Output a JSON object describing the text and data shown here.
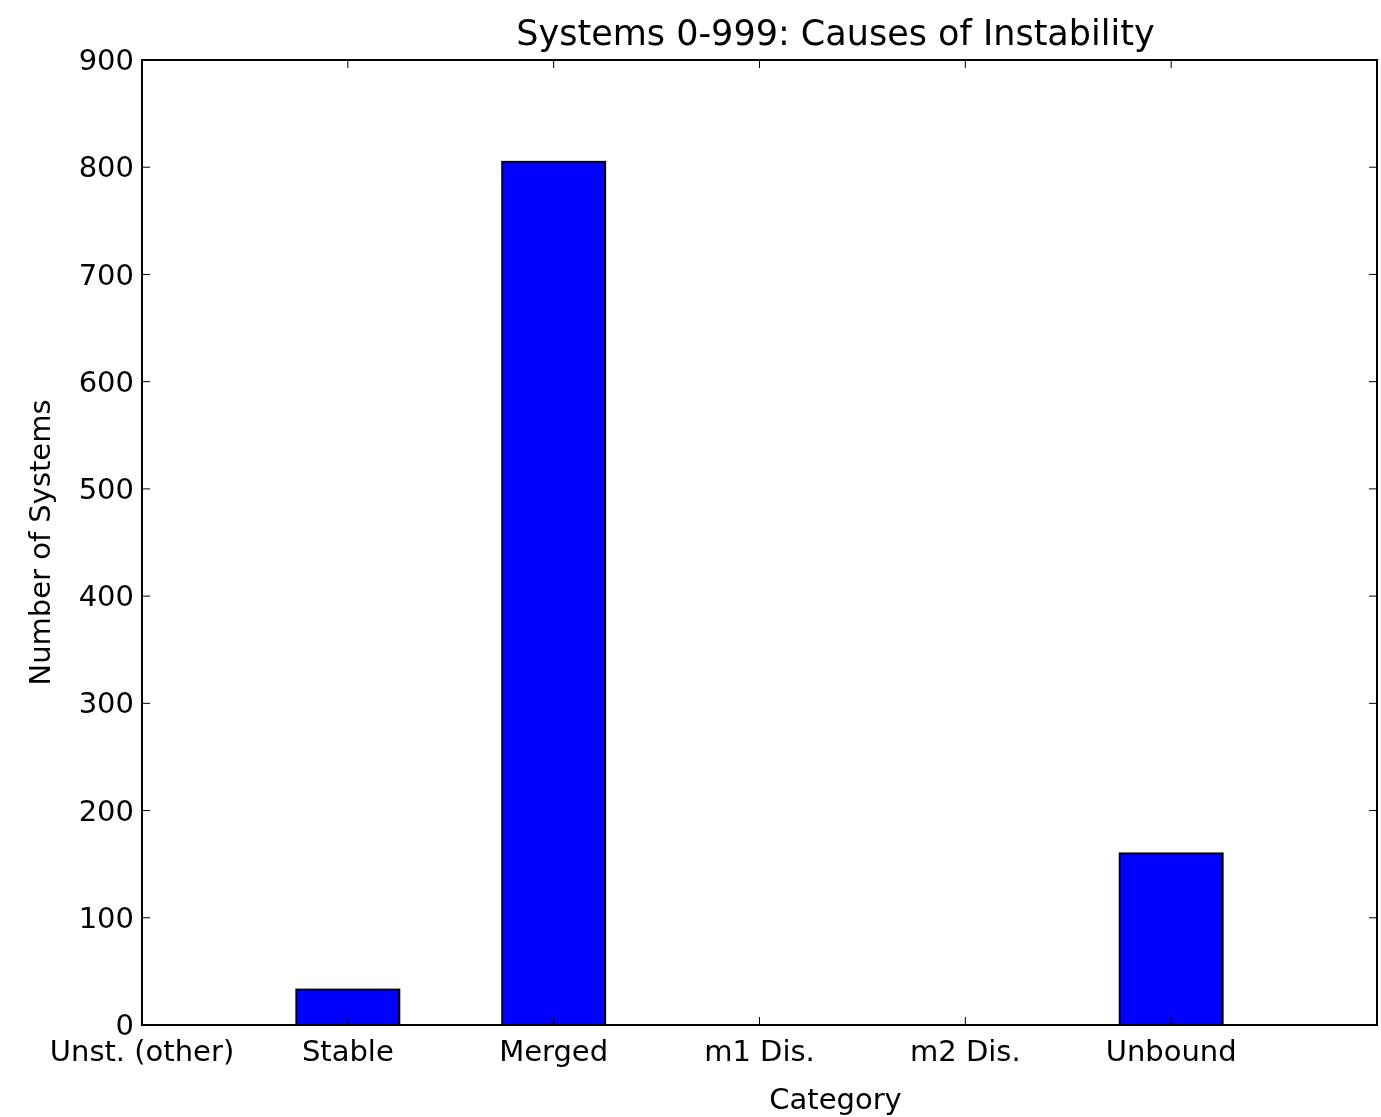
{
  "chart_data": {
    "type": "bar",
    "title": "Systems 0-999: Causes of Instability",
    "xlabel": "Category",
    "ylabel": "Number of Systems",
    "categories": [
      "Unst. (other)",
      "Stable",
      "Merged",
      "m1 Dis.",
      "m2 Dis.",
      "Unbound"
    ],
    "values": [
      0,
      33,
      805,
      0,
      0,
      160
    ],
    "color": "#0000ff",
    "ylim": [
      0,
      900
    ],
    "yticks": [
      0,
      100,
      200,
      300,
      400,
      500,
      600,
      700,
      800,
      900
    ]
  }
}
